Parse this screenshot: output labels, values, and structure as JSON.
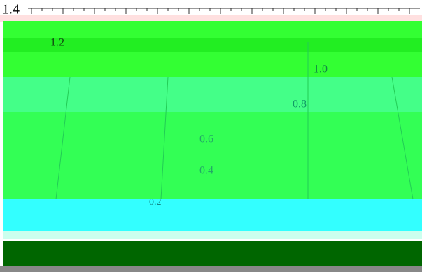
{
  "labels": [
    "1.4",
    "1.2",
    "1.0",
    "0.8",
    "0.6",
    "0.4",
    "0.2"
  ]
}
